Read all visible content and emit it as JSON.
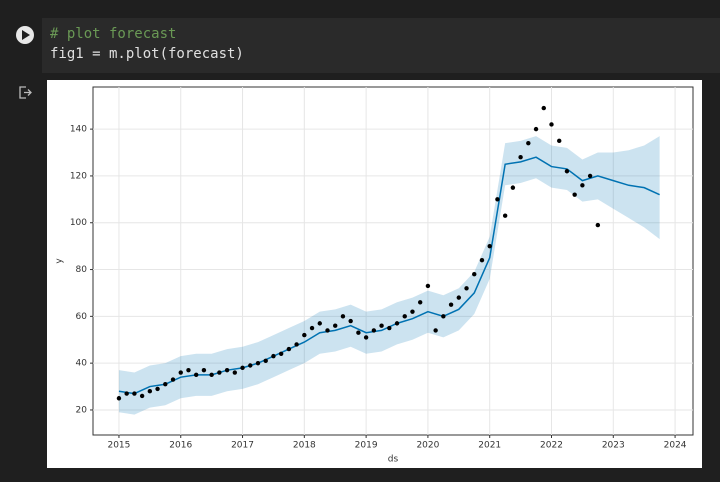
{
  "cell": {
    "code": [
      "# plot forecast",
      "fig1 = m.plot(forecast)"
    ]
  },
  "chart_data": {
    "type": "scatter",
    "xlabel": "ds",
    "ylabel": "y",
    "xlim": [
      2014.58,
      2024.29
    ],
    "ylim": [
      9.3,
      158
    ],
    "xticks": [
      2015,
      2016,
      2017,
      2018,
      2019,
      2020,
      2021,
      2022,
      2023,
      2024
    ],
    "yticks": [
      20,
      40,
      60,
      80,
      100,
      120,
      140
    ],
    "grid": true,
    "series": [
      {
        "type": "scatter",
        "color": "#000000",
        "x": [
          2015.0,
          2015.125,
          2015.25,
          2015.375,
          2015.5,
          2015.625,
          2015.75,
          2015.875,
          2016.0,
          2016.125,
          2016.25,
          2016.375,
          2016.5,
          2016.625,
          2016.75,
          2016.875,
          2017.0,
          2017.125,
          2017.25,
          2017.375,
          2017.5,
          2017.625,
          2017.75,
          2017.875,
          2018.0,
          2018.125,
          2018.25,
          2018.375,
          2018.5,
          2018.625,
          2018.75,
          2018.875,
          2019.0,
          2019.125,
          2019.25,
          2019.375,
          2019.5,
          2019.625,
          2019.75,
          2019.875,
          2020.0,
          2020.125,
          2020.25,
          2020.375,
          2020.5,
          2020.625,
          2020.75,
          2020.875,
          2021.0,
          2021.125,
          2021.25,
          2021.375,
          2021.5,
          2021.625,
          2021.75,
          2021.875,
          2022.0,
          2022.125,
          2022.25,
          2022.375,
          2022.5,
          2022.625,
          2022.75
        ],
        "values": [
          25,
          27,
          27,
          26,
          28,
          29,
          31,
          33,
          36,
          37,
          35,
          37,
          35,
          36,
          37,
          36,
          38,
          39,
          40,
          41,
          43,
          44,
          46,
          48,
          52,
          55,
          57,
          54,
          56,
          60,
          58,
          53,
          51,
          54,
          56,
          55,
          57,
          60,
          62,
          66,
          73,
          54,
          60,
          65,
          68,
          72,
          78,
          84,
          90,
          110,
          103,
          115,
          128,
          134,
          140,
          149,
          142,
          135,
          122,
          112,
          116,
          120,
          99
        ]
      },
      {
        "type": "line",
        "color": "#0072B2",
        "band_color": "#0072B2",
        "x": [
          2015.0,
          2015.25,
          2015.5,
          2015.75,
          2016.0,
          2016.25,
          2016.5,
          2016.75,
          2017.0,
          2017.25,
          2017.5,
          2017.75,
          2018.0,
          2018.25,
          2018.5,
          2018.75,
          2019.0,
          2019.25,
          2019.5,
          2019.75,
          2020.0,
          2020.25,
          2020.5,
          2020.75,
          2021.0,
          2021.25,
          2021.5,
          2021.75,
          2022.0,
          2022.25,
          2022.5,
          2022.75,
          2023.0,
          2023.25,
          2023.5,
          2023.75
        ],
        "values": [
          28,
          27,
          30,
          31,
          34,
          35,
          35,
          37,
          38,
          40,
          43,
          46,
          49,
          53,
          54,
          56,
          53,
          54,
          57,
          59,
          62,
          60,
          63,
          70,
          85,
          125,
          126,
          128,
          124,
          123,
          118,
          120,
          118,
          116,
          115,
          112
        ],
        "lower": [
          19,
          18,
          21,
          22,
          25,
          26,
          26,
          28,
          29,
          31,
          34,
          37,
          40,
          44,
          45,
          47,
          44,
          45,
          48,
          50,
          53,
          51,
          54,
          61,
          76,
          116,
          117,
          119,
          115,
          114,
          109,
          110,
          106,
          102,
          98,
          93
        ],
        "upper": [
          37,
          36,
          39,
          40,
          43,
          44,
          44,
          46,
          47,
          49,
          52,
          55,
          58,
          62,
          63,
          65,
          62,
          63,
          66,
          68,
          71,
          69,
          72,
          79,
          94,
          134,
          135,
          137,
          133,
          132,
          127,
          130,
          130,
          131,
          133,
          137
        ]
      }
    ]
  }
}
